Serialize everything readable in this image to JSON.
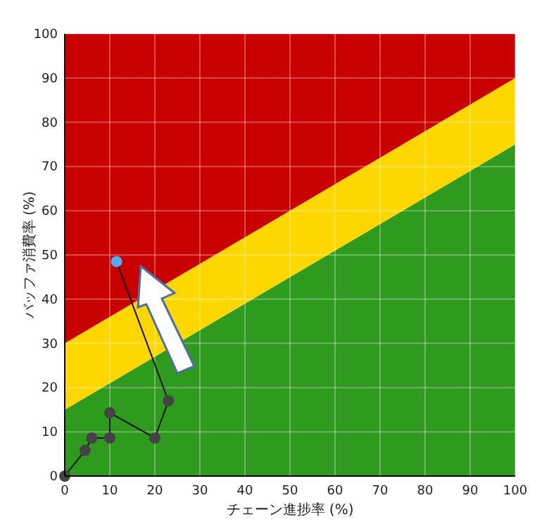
{
  "chart_data": {
    "type": "line",
    "xlabel": "チェーン進捗率 (%)",
    "ylabel": "バッファ消費率 (%)",
    "xlim": [
      0,
      100
    ],
    "ylim": [
      0,
      100
    ],
    "xticks": [
      0,
      10,
      20,
      30,
      40,
      50,
      60,
      70,
      80,
      90,
      100
    ],
    "yticks": [
      0,
      10,
      20,
      30,
      40,
      50,
      60,
      70,
      80,
      90,
      100
    ],
    "grid": true,
    "stacked": true,
    "line_style": "solid",
    "series": [
      {
        "type": "area",
        "color": "#2e9a1e",
        "x": [
          0,
          100
        ],
        "values": [
          15,
          75
        ]
      },
      {
        "type": "area",
        "color": "#ffd700",
        "x": [
          0,
          100
        ],
        "values": [
          15,
          15
        ]
      },
      {
        "type": "area",
        "color": "#c80000",
        "x": [
          0,
          100
        ],
        "values": [
          70,
          10
        ]
      },
      {
        "type": "line",
        "marker": "circle",
        "color": "#111111",
        "x": [
          0,
          4.5,
          6,
          10,
          10,
          20,
          23,
          11.5
        ],
        "values": [
          0,
          5.8,
          8.6,
          8.6,
          14.3,
          8.6,
          17,
          48.5
        ],
        "colors": [
          "#444444",
          "#444444",
          "#444444",
          "#444444",
          "#444444",
          "#444444",
          "#444444",
          "#55aaee"
        ]
      }
    ]
  }
}
